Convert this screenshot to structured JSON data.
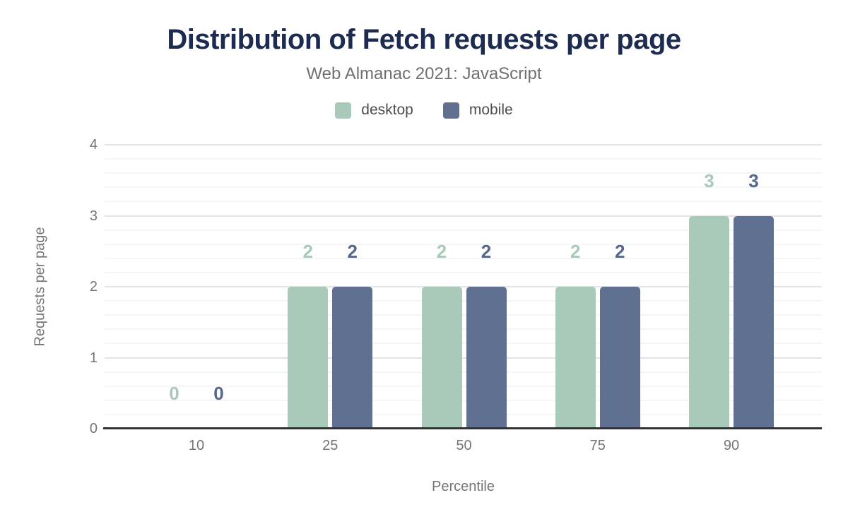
{
  "chart_data": {
    "type": "bar",
    "title": "Distribution of Fetch requests per page",
    "subtitle": "Web Almanac 2021: JavaScript",
    "xlabel": "Percentile",
    "ylabel": "Requests per page",
    "categories": [
      "10",
      "25",
      "50",
      "75",
      "90"
    ],
    "series": [
      {
        "name": "desktop",
        "color": "#a9cab9",
        "label_color": "#a9cab9",
        "values": [
          0,
          2,
          2,
          2,
          3
        ]
      },
      {
        "name": "mobile",
        "color": "#5f7090",
        "label_color": "#54678c",
        "values": [
          0,
          2,
          2,
          2,
          3
        ]
      }
    ],
    "ylim": [
      0,
      4
    ],
    "y_ticks": [
      0,
      1,
      2,
      3,
      4
    ],
    "minor_tick_step": 0.2,
    "grid": true,
    "legend_position": "top",
    "data_labels": true
  },
  "colors": {
    "title": "#1c2b4f",
    "subtitle": "#6e7072",
    "axis_text": "#757575",
    "legend_text": "#4d4d4d",
    "axis_line": "#333333",
    "grid_major": "#e3e3e3",
    "grid_minor": "#f5f5f5",
    "background": "#ffffff"
  }
}
